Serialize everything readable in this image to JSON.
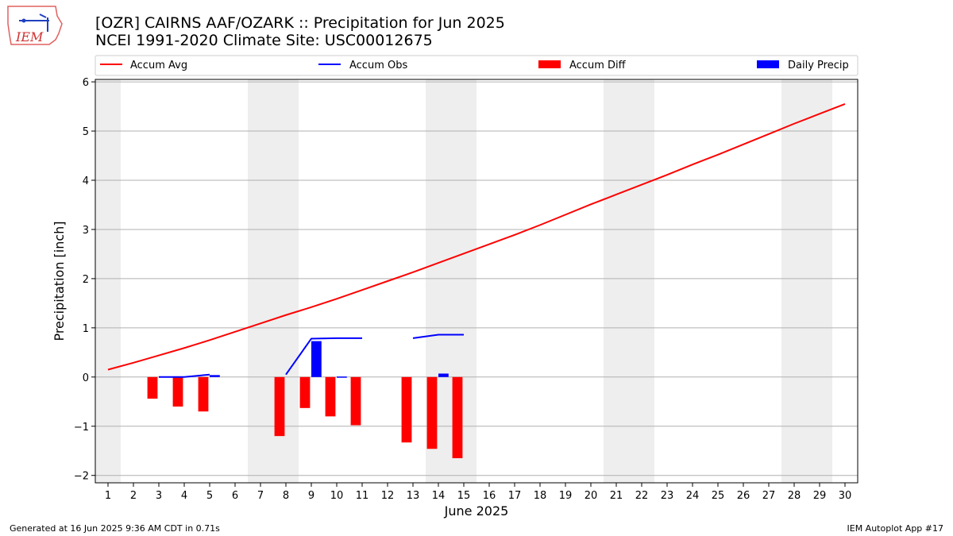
{
  "header": {
    "title_line1": "[OZR] CAIRNS AAF/OZARK :: Precipitation for Jun 2025",
    "title_line2": "NCEI 1991-2020 Climate Site: USC00012675",
    "logo_text": "IEM"
  },
  "footer": {
    "left": "Generated at 16 Jun 2025 9:36 AM CDT in 0.71s",
    "right": "IEM Autoplot App #17"
  },
  "colors": {
    "avg": "#ff0000",
    "obs": "#0000ff",
    "diff": "#ff0000",
    "precip": "#0000ff",
    "weekend_band": "#eeeeee",
    "grid": "#b0b0b0"
  },
  "chart_data": {
    "type": "bar",
    "xlabel": "June 2025",
    "ylabel": "Precipitation [inch]",
    "xlim": [
      0.5,
      30.5
    ],
    "ylim": [
      -2.15,
      6.05
    ],
    "x_ticks": [
      "1",
      "2",
      "3",
      "4",
      "5",
      "6",
      "7",
      "8",
      "9",
      "10",
      "11",
      "12",
      "13",
      "14",
      "15",
      "16",
      "17",
      "18",
      "19",
      "20",
      "21",
      "22",
      "23",
      "24",
      "25",
      "26",
      "27",
      "28",
      "29",
      "30"
    ],
    "y_ticks": [
      {
        "value": -2,
        "label": "−2"
      },
      {
        "value": -1,
        "label": "−1"
      },
      {
        "value": 0,
        "label": "0"
      },
      {
        "value": 1,
        "label": "1"
      },
      {
        "value": 2,
        "label": "2"
      },
      {
        "value": 3,
        "label": "3"
      },
      {
        "value": 4,
        "label": "4"
      },
      {
        "value": 5,
        "label": "5"
      },
      {
        "value": 6,
        "label": "6"
      }
    ],
    "grid": "horizontal",
    "legend_position": "top",
    "weekend_bands": [
      [
        0.5,
        1.5
      ],
      [
        6.5,
        8.5
      ],
      [
        13.5,
        15.5
      ],
      [
        20.5,
        22.5
      ],
      [
        27.5,
        29.5
      ]
    ],
    "legend": [
      "Accum Avg",
      "Accum Obs",
      "Accum Diff",
      "Daily Precip"
    ],
    "series": [
      {
        "name": "Accum Avg",
        "kind": "line",
        "x": [
          1,
          2,
          3,
          4,
          5,
          6,
          7,
          8,
          9,
          10,
          11,
          12,
          13,
          14,
          15,
          16,
          17,
          18,
          19,
          20,
          21,
          22,
          23,
          24,
          25,
          26,
          27,
          28,
          29,
          30
        ],
        "values": [
          0.15,
          0.29,
          0.44,
          0.59,
          0.75,
          0.92,
          1.09,
          1.26,
          1.42,
          1.59,
          1.77,
          1.95,
          2.13,
          2.32,
          2.51,
          2.7,
          2.89,
          3.09,
          3.3,
          3.51,
          3.71,
          3.91,
          4.11,
          4.32,
          4.52,
          4.73,
          4.94,
          5.15,
          5.35,
          5.55
        ]
      },
      {
        "name": "Accum Obs",
        "kind": "line",
        "segments": [
          {
            "x": [
              3,
              4,
              5
            ],
            "values": [
              0.0,
              0.0,
              0.05
            ]
          },
          {
            "x": [
              8,
              9,
              10,
              11
            ],
            "values": [
              0.05,
              0.78,
              0.79,
              0.79
            ]
          },
          {
            "x": [
              13,
              14,
              15
            ],
            "values": [
              0.79,
              0.86,
              0.86
            ]
          }
        ]
      },
      {
        "name": "Accum Diff",
        "kind": "bar",
        "x": [
          3,
          4,
          5,
          8,
          9,
          10,
          11,
          13,
          14,
          15
        ],
        "values": [
          -0.44,
          -0.6,
          -0.7,
          -1.2,
          -0.63,
          -0.8,
          -0.98,
          -1.33,
          -1.46,
          -1.65
        ]
      },
      {
        "name": "Daily Precip",
        "kind": "bar",
        "x": [
          5,
          9,
          10,
          14
        ],
        "values": [
          0.04,
          0.73,
          0.01,
          0.07
        ]
      }
    ]
  }
}
